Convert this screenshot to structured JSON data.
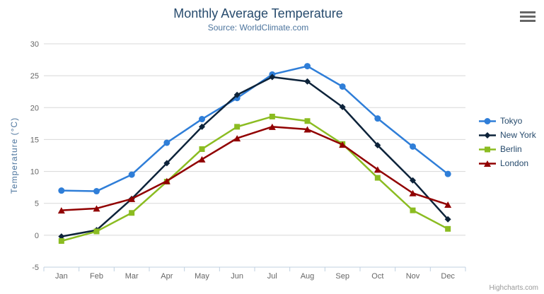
{
  "chart_data": {
    "type": "line",
    "title": "Monthly Average Temperature",
    "subtitle": "Source: WorldClimate.com",
    "xlabel": "",
    "ylabel": "Temperature (°C)",
    "ylim": [
      -5,
      30
    ],
    "ytick_step": 5,
    "grid": true,
    "legend_position": "right",
    "credits": "Highcharts.com",
    "categories": [
      "Jan",
      "Feb",
      "Mar",
      "Apr",
      "May",
      "Jun",
      "Jul",
      "Aug",
      "Sep",
      "Oct",
      "Nov",
      "Dec"
    ],
    "series": [
      {
        "name": "Tokyo",
        "color": "#2f7ed8",
        "marker": "circle",
        "values": [
          7.0,
          6.9,
          9.5,
          14.5,
          18.2,
          21.5,
          25.2,
          26.5,
          23.3,
          18.3,
          13.9,
          9.6
        ]
      },
      {
        "name": "New York",
        "color": "#0d233a",
        "marker": "diamond",
        "values": [
          -0.2,
          0.8,
          5.7,
          11.3,
          17.0,
          22.0,
          24.8,
          24.1,
          20.1,
          14.1,
          8.6,
          2.5
        ]
      },
      {
        "name": "Berlin",
        "color": "#8bbc21",
        "marker": "square",
        "values": [
          -0.9,
          0.6,
          3.5,
          8.4,
          13.5,
          17.0,
          18.6,
          17.9,
          14.3,
          9.0,
          3.9,
          1.0
        ]
      },
      {
        "name": "London",
        "color": "#910000",
        "marker": "triangle",
        "values": [
          3.9,
          4.2,
          5.7,
          8.5,
          11.9,
          15.2,
          17.0,
          16.6,
          14.2,
          10.3,
          6.6,
          4.8
        ]
      }
    ],
    "colors": {
      "title": "#274b6d",
      "subtitle": "#4d759e",
      "axis_label": "#666666",
      "gridline": "#d8d8d8",
      "axis_line": "#c0d0e0",
      "legend_text": "#274b6d"
    }
  }
}
